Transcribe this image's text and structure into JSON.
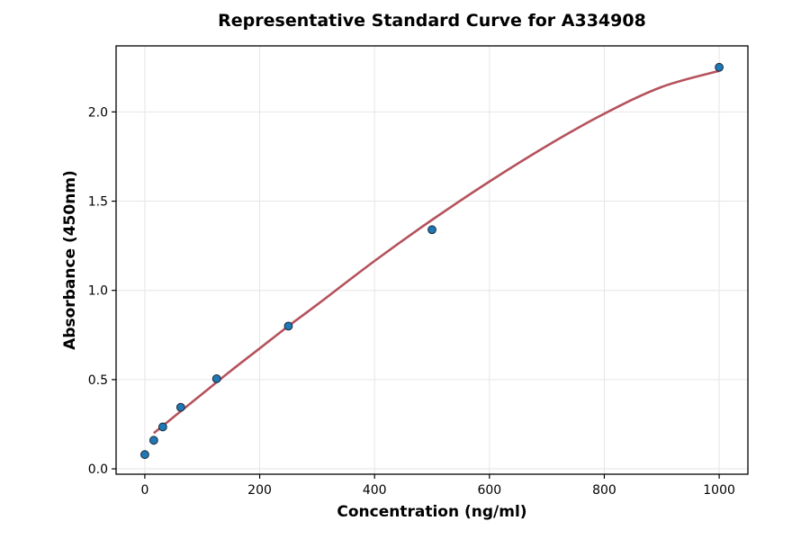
{
  "chart_data": {
    "type": "scatter",
    "title": "Representative Standard Curve for A334908",
    "xlabel": "Concentration (ng/ml)",
    "ylabel": "Absorbance (450nm)",
    "xlim": [
      -50,
      1050
    ],
    "ylim": [
      -0.03,
      2.37
    ],
    "xticks": [
      0,
      200,
      400,
      600,
      800,
      1000
    ],
    "xtick_labels": [
      "0",
      "200",
      "400",
      "600",
      "800",
      "1000"
    ],
    "yticks": [
      0.0,
      0.5,
      1.0,
      1.5,
      2.0
    ],
    "ytick_labels": [
      "0.0",
      "0.5",
      "1.0",
      "1.5",
      "2.0"
    ],
    "grid": true,
    "points": {
      "x": [
        0,
        15.6,
        31.25,
        62.5,
        125,
        250,
        500,
        1000
      ],
      "y": [
        0.08,
        0.16,
        0.235,
        0.345,
        0.505,
        0.8,
        1.34,
        2.25
      ],
      "color": "#1f77b4"
    },
    "fit_curve": {
      "x": [
        15.6,
        50,
        100,
        150,
        200,
        250,
        300,
        400,
        500,
        600,
        700,
        800,
        900,
        1000
      ],
      "y": [
        0.2,
        0.29,
        0.42,
        0.55,
        0.675,
        0.8,
        0.92,
        1.165,
        1.395,
        1.61,
        1.81,
        1.99,
        2.14,
        2.23
      ],
      "color": "#b5525c"
    }
  }
}
